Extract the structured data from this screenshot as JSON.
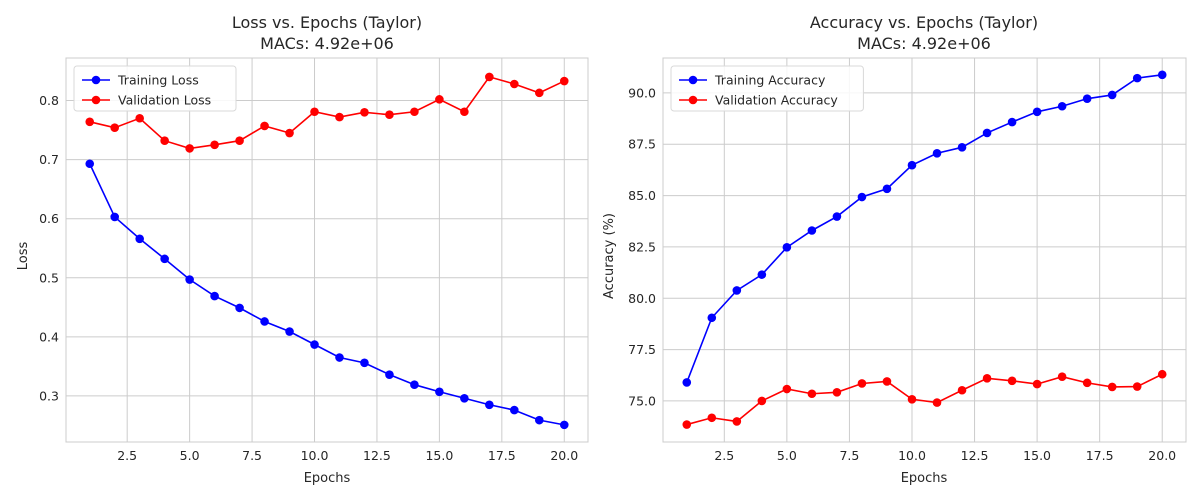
{
  "chart_data": [
    {
      "type": "line",
      "title": "Loss vs. Epochs (Taylor)",
      "subtitle": "MACs: 4.92e+06",
      "xlabel": "Epochs",
      "ylabel": "Loss",
      "xlim": [
        0.05,
        20.95
      ],
      "ylim": [
        0.222,
        0.872
      ],
      "xticks": [
        2.5,
        5.0,
        7.5,
        10.0,
        12.5,
        15.0,
        17.5,
        20.0
      ],
      "xtick_labels": [
        "2.5",
        "5.0",
        "7.5",
        "10.0",
        "12.5",
        "15.0",
        "17.5",
        "20.0"
      ],
      "yticks": [
        0.3,
        0.4,
        0.5,
        0.6,
        0.7,
        0.8
      ],
      "ytick_labels": [
        "0.3",
        "0.4",
        "0.5",
        "0.6",
        "0.7",
        "0.8"
      ],
      "grid": true,
      "legend_position": "upper-left",
      "x": [
        1,
        2,
        3,
        4,
        5,
        6,
        7,
        8,
        9,
        10,
        11,
        12,
        13,
        14,
        15,
        16,
        17,
        18,
        19,
        20
      ],
      "series": [
        {
          "name": "Training Loss",
          "color": "#0000ff",
          "values": [
            0.693,
            0.603,
            0.566,
            0.532,
            0.497,
            0.469,
            0.449,
            0.426,
            0.409,
            0.387,
            0.365,
            0.356,
            0.336,
            0.319,
            0.307,
            0.296,
            0.285,
            0.276,
            0.259,
            0.251
          ]
        },
        {
          "name": "Validation Loss",
          "color": "#ff0000",
          "values": [
            0.764,
            0.754,
            0.77,
            0.732,
            0.719,
            0.725,
            0.732,
            0.757,
            0.745,
            0.781,
            0.772,
            0.78,
            0.776,
            0.781,
            0.802,
            0.781,
            0.84,
            0.828,
            0.813,
            0.833
          ]
        }
      ]
    },
    {
      "type": "line",
      "title": "Accuracy vs. Epochs (Taylor)",
      "subtitle": "MACs: 4.92e+06",
      "xlabel": "Epochs",
      "ylabel": "Accuracy (%)",
      "xlim": [
        0.05,
        20.95
      ],
      "ylim": [
        73.0,
        91.7
      ],
      "xticks": [
        2.5,
        5.0,
        7.5,
        10.0,
        12.5,
        15.0,
        17.5,
        20.0
      ],
      "xtick_labels": [
        "2.5",
        "5.0",
        "7.5",
        "10.0",
        "12.5",
        "15.0",
        "17.5",
        "20.0"
      ],
      "yticks": [
        75.0,
        77.5,
        80.0,
        82.5,
        85.0,
        87.5,
        90.0
      ],
      "ytick_labels": [
        "75.0",
        "77.5",
        "80.0",
        "82.5",
        "85.0",
        "87.5",
        "90.0"
      ],
      "grid": true,
      "legend_position": "upper-left",
      "x": [
        1,
        2,
        3,
        4,
        5,
        6,
        7,
        8,
        9,
        10,
        11,
        12,
        13,
        14,
        15,
        16,
        17,
        18,
        19,
        20
      ],
      "series": [
        {
          "name": "Training Accuracy",
          "color": "#0000ff",
          "values": [
            75.9,
            79.05,
            80.38,
            81.15,
            82.48,
            83.3,
            83.98,
            84.93,
            85.33,
            86.48,
            87.06,
            87.35,
            88.05,
            88.58,
            89.08,
            89.35,
            89.72,
            89.9,
            90.72,
            90.88
          ]
        },
        {
          "name": "Validation Accuracy",
          "color": "#ff0000",
          "values": [
            73.85,
            74.18,
            74.0,
            75.0,
            75.58,
            75.35,
            75.42,
            75.85,
            75.95,
            75.08,
            74.92,
            75.52,
            76.1,
            75.98,
            75.82,
            76.18,
            75.88,
            75.68,
            75.7,
            76.3
          ]
        }
      ]
    }
  ]
}
